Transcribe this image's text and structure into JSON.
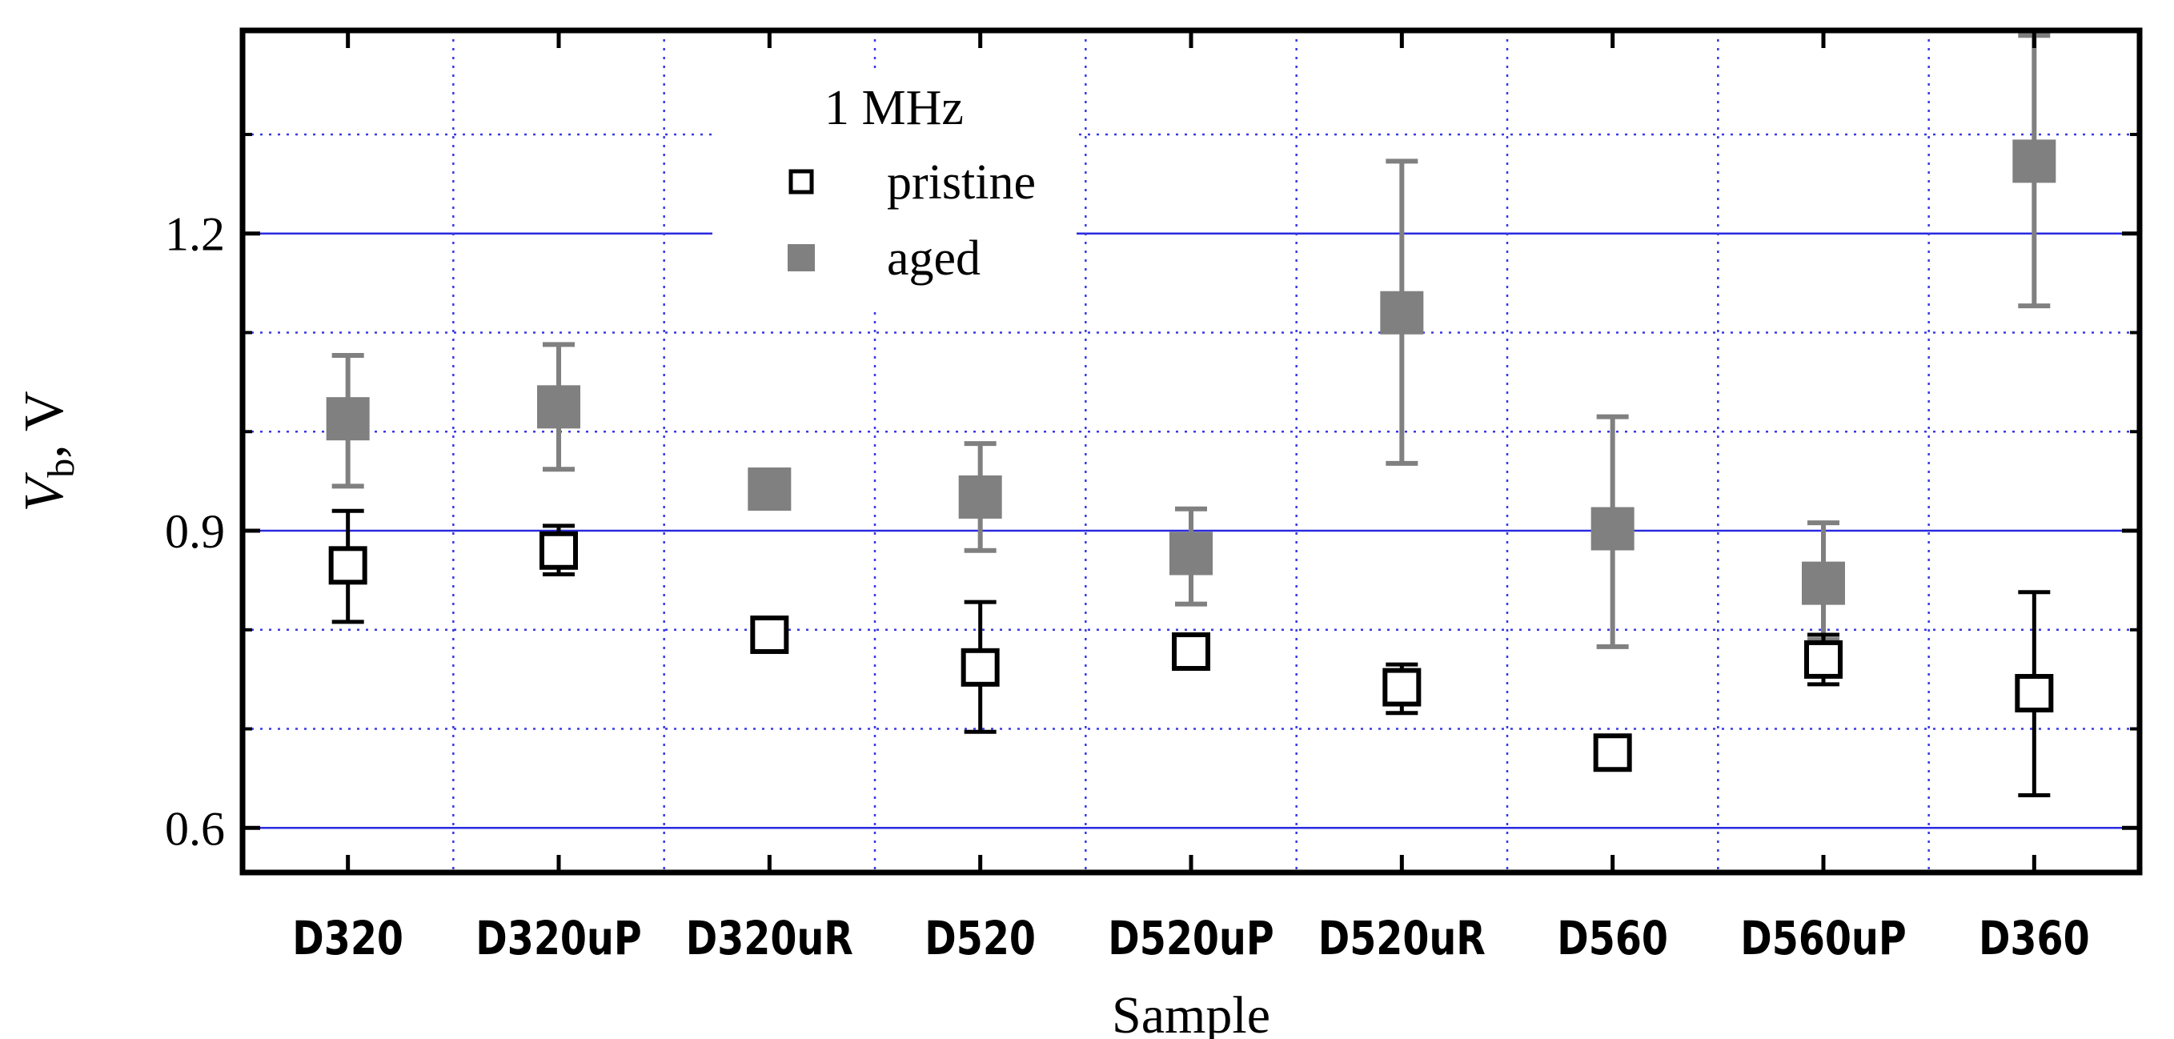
{
  "chart_data": {
    "type": "scatter",
    "title": "",
    "xlabel": "Sample",
    "ylabel": {
      "symbol": "V",
      "subscript": "b",
      "unit": ", V"
    },
    "categories": [
      "D320",
      "D320uP",
      "D320uR",
      "D520",
      "D520uP",
      "D520uR",
      "D560",
      "D560uP",
      "D360"
    ],
    "ylim": [
      0.555,
      1.405
    ],
    "y_ticks": [
      0.6,
      0.9,
      1.2
    ],
    "y_tick_labels": [
      "0.6",
      "0.9",
      "1.2"
    ],
    "major_gridlines": [
      0.6,
      0.9,
      1.2
    ],
    "minor_gridlines": [
      0.7,
      0.8,
      1.0,
      1.1,
      1.3
    ],
    "grid": true,
    "legend": {
      "title": "1 MHz",
      "placement": "top-center"
    },
    "series": [
      {
        "name": "pristine",
        "marker": "open-square",
        "color": "#000000",
        "values": [
          0.865,
          0.88,
          0.795,
          0.762,
          0.778,
          0.742,
          0.676,
          0.77,
          0.736
        ],
        "err_low": [
          0.808,
          0.856,
          null,
          0.697,
          0.767,
          0.716,
          null,
          0.745,
          0.633
        ],
        "err_high": [
          0.92,
          0.905,
          null,
          0.828,
          0.79,
          0.765,
          null,
          0.795,
          0.838
        ]
      },
      {
        "name": "aged",
        "marker": "filled-square",
        "color": "#808080",
        "values": [
          1.013,
          1.025,
          0.942,
          0.934,
          0.877,
          1.12,
          0.902,
          0.847,
          1.273
        ],
        "err_low": [
          0.945,
          0.962,
          null,
          0.88,
          0.826,
          0.968,
          0.783,
          0.79,
          1.127
        ],
        "err_high": [
          1.077,
          1.088,
          null,
          0.988,
          0.922,
          1.273,
          1.015,
          0.908,
          1.4
        ]
      }
    ]
  },
  "colors": {
    "major_grid": "#2a2ae0",
    "minor_grid": "#3838e8",
    "pristine": "#000000",
    "aged": "#808080",
    "axes": "#000000"
  }
}
